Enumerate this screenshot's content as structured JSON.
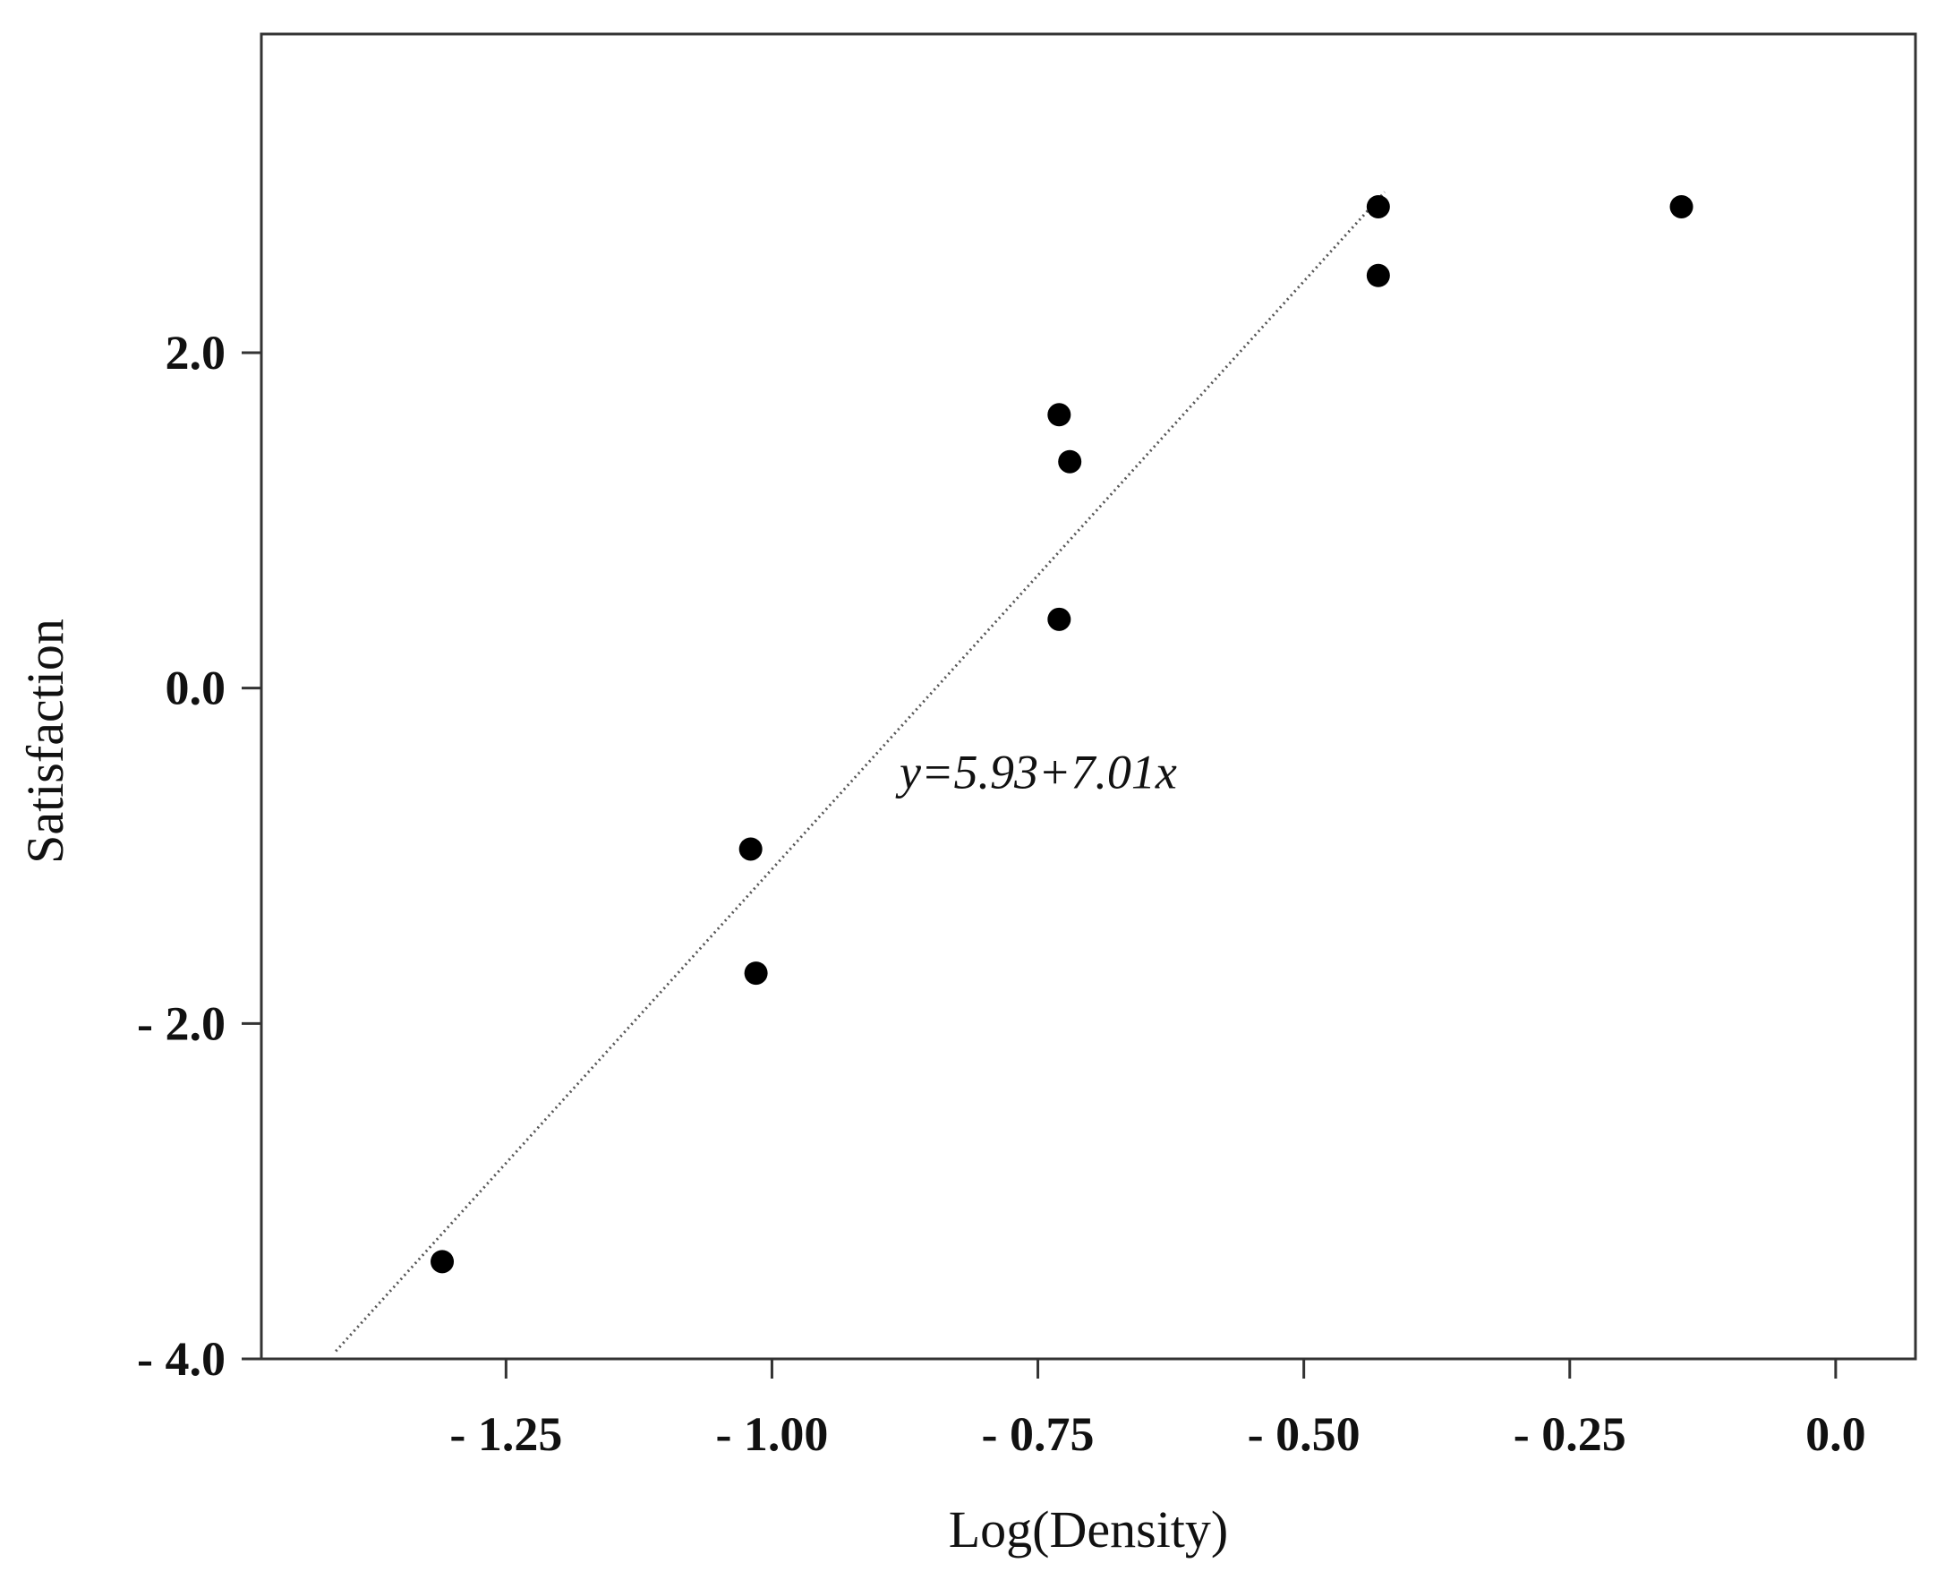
{
  "chart_data": {
    "type": "scatter",
    "title": "",
    "xlabel": "Log(Density)",
    "ylabel": "Satisfaction",
    "xlim": [
      -1.48,
      0.075
    ],
    "ylim": [
      -4.0,
      3.9
    ],
    "x_ticks": [
      -1.25,
      -1.0,
      -0.75,
      -0.5,
      -0.25,
      0.0
    ],
    "x_tick_labels": [
      "- 1.25",
      "- 1.00",
      "- 0.75",
      "- 0.50",
      "- 0.25",
      "0.0"
    ],
    "y_ticks": [
      -4.0,
      -2.0,
      0.0,
      2.0
    ],
    "y_tick_labels": [
      "- 4.0",
      "- 2.0",
      "0.0",
      "2.0"
    ],
    "grid": false,
    "legend": "none",
    "point_color": "#000000",
    "line_color": "#555555",
    "points": [
      {
        "x": -1.31,
        "y": -3.42
      },
      {
        "x": -1.02,
        "y": -0.96
      },
      {
        "x": -1.015,
        "y": -1.7
      },
      {
        "x": -0.73,
        "y": 1.63
      },
      {
        "x": -0.72,
        "y": 1.35
      },
      {
        "x": -0.73,
        "y": 0.41
      },
      {
        "x": -0.43,
        "y": 2.87
      },
      {
        "x": -0.43,
        "y": 2.46
      },
      {
        "x": -0.145,
        "y": 2.87
      }
    ],
    "fit_line": {
      "intercept": 5.93,
      "slope": 7.01,
      "x_range": [
        -1.41,
        -0.424
      ]
    },
    "annotations": [
      {
        "text": "y=5.93+7.01x",
        "x": -0.88,
        "y": -0.5
      }
    ]
  }
}
